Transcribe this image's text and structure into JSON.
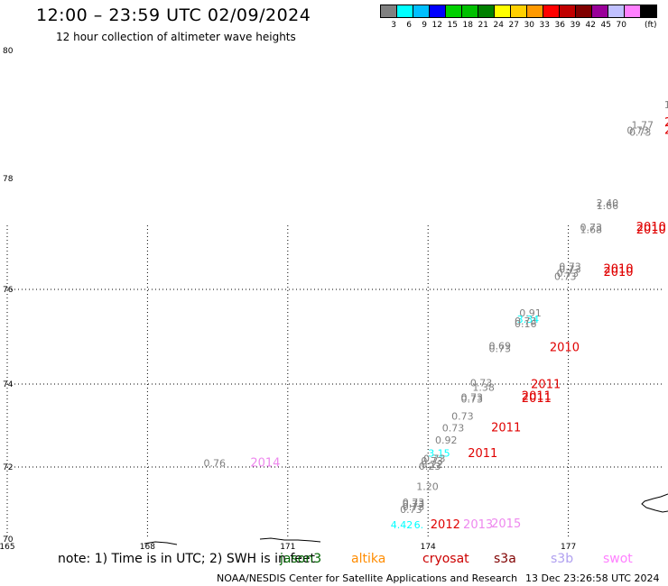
{
  "header": {
    "title": "12:00 – 23:59 UTC 02/09/2024",
    "subtitle": "12 hour collection of altimeter wave heights"
  },
  "legend": {
    "unit": "(ft)",
    "entries": [
      {
        "label": "3",
        "color": "#808080"
      },
      {
        "label": "6",
        "color": "#00ffff"
      },
      {
        "label": "9",
        "color": "#00bfff"
      },
      {
        "label": "12",
        "color": "#0000ff"
      },
      {
        "label": "15",
        "color": "#00d000"
      },
      {
        "label": "18",
        "color": "#00c000"
      },
      {
        "label": "21",
        "color": "#008000"
      },
      {
        "label": "24",
        "color": "#ffff00"
      },
      {
        "label": "27",
        "color": "#ffd000"
      },
      {
        "label": "30",
        "color": "#ff9900"
      },
      {
        "label": "33",
        "color": "#ff0000"
      },
      {
        "label": "36",
        "color": "#c00000"
      },
      {
        "label": "39",
        "color": "#800000"
      },
      {
        "label": "42",
        "color": "#990099"
      },
      {
        "label": "45",
        "color": "#c0c0ff"
      },
      {
        "label": "70",
        "color": "#ff80ff"
      },
      {
        "label": "",
        "color": "#000000"
      }
    ]
  },
  "map": {
    "lat_labels": [
      {
        "text": "80",
        "lat": 80
      },
      {
        "text": "78",
        "lat": 78
      },
      {
        "text": "76",
        "lat": 76
      },
      {
        "text": "74",
        "lat": 74
      },
      {
        "text": "72",
        "lat": 72
      },
      {
        "text": "70",
        "lat": 70
      }
    ],
    "lon_labels": [
      {
        "text": "165",
        "lon": 165
      },
      {
        "text": "168",
        "lon": 168
      },
      {
        "text": "171",
        "lon": 171
      },
      {
        "text": "174",
        "lon": 174
      },
      {
        "text": "177",
        "lon": 177
      }
    ],
    "swh_labels": [
      {
        "text": "1.",
        "lon": 179.05,
        "lat": 79.1,
        "color": "#808080"
      },
      {
        "text": "1.77",
        "lon": 178.35,
        "lat": 78.78,
        "color": "#808080"
      },
      {
        "text": "0.73",
        "lon": 178.25,
        "lat": 78.7,
        "color": "#808080"
      },
      {
        "text": "0.73",
        "lon": 178.3,
        "lat": 78.67,
        "color": "#808080"
      },
      {
        "text": "2.40",
        "lon": 177.6,
        "lat": 77.5,
        "color": "#808080"
      },
      {
        "text": "1.66",
        "lon": 177.6,
        "lat": 77.45,
        "color": "#808080"
      },
      {
        "text": "0.73",
        "lon": 177.25,
        "lat": 77.06,
        "color": "#808080"
      },
      {
        "text": "1.68",
        "lon": 177.25,
        "lat": 77.02,
        "color": "#808080"
      },
      {
        "text": "0.73",
        "lon": 176.8,
        "lat": 76.35,
        "color": "#808080"
      },
      {
        "text": "0.73",
        "lon": 176.8,
        "lat": 76.3,
        "color": "#808080"
      },
      {
        "text": "0.73",
        "lon": 176.75,
        "lat": 76.23,
        "color": "#808080"
      },
      {
        "text": "0.73",
        "lon": 176.7,
        "lat": 76.17,
        "color": "#808080"
      },
      {
        "text": "0.91",
        "lon": 175.95,
        "lat": 75.43,
        "color": "#808080"
      },
      {
        "text": "3.34",
        "lon": 175.9,
        "lat": 75.3,
        "color": "#00ffff"
      },
      {
        "text": "0.73",
        "lon": 175.85,
        "lat": 75.26,
        "color": "#808080"
      },
      {
        "text": "0.16",
        "lon": 175.85,
        "lat": 75.2,
        "color": "#808080"
      },
      {
        "text": "0.69",
        "lon": 175.3,
        "lat": 74.73,
        "color": "#808080"
      },
      {
        "text": "0.73",
        "lon": 175.3,
        "lat": 74.68,
        "color": "#808080"
      },
      {
        "text": "0.73",
        "lon": 174.9,
        "lat": 73.95,
        "color": "#808080"
      },
      {
        "text": "1.38",
        "lon": 174.95,
        "lat": 73.84,
        "color": "#808080"
      },
      {
        "text": "0.73",
        "lon": 174.7,
        "lat": 73.6,
        "color": "#808080"
      },
      {
        "text": "0.73",
        "lon": 174.7,
        "lat": 73.55,
        "color": "#808080"
      },
      {
        "text": "0.73",
        "lon": 174.5,
        "lat": 73.14,
        "color": "#808080"
      },
      {
        "text": "0.73",
        "lon": 174.3,
        "lat": 72.86,
        "color": "#808080"
      },
      {
        "text": "0.92",
        "lon": 174.15,
        "lat": 72.56,
        "color": "#808080"
      },
      {
        "text": "3.15",
        "lon": 174.0,
        "lat": 72.25,
        "color": "#00ffff"
      },
      {
        "text": "0.73",
        "lon": 173.9,
        "lat": 72.12,
        "color": "#808080"
      },
      {
        "text": "0.73",
        "lon": 173.85,
        "lat": 72.06,
        "color": "#808080"
      },
      {
        "text": "0.22",
        "lon": 173.85,
        "lat": 71.98,
        "color": "#808080"
      },
      {
        "text": "0.23",
        "lon": 173.8,
        "lat": 71.93,
        "color": "#808080"
      },
      {
        "text": "1.20",
        "lon": 173.75,
        "lat": 71.36,
        "color": "#808080"
      },
      {
        "text": "0.73",
        "lon": 173.45,
        "lat": 70.92,
        "color": "#808080"
      },
      {
        "text": "0.73",
        "lon": 173.45,
        "lat": 70.87,
        "color": "#808080"
      },
      {
        "text": "0.73",
        "lon": 173.45,
        "lat": 70.8,
        "color": "#808080"
      },
      {
        "text": "0.73",
        "lon": 173.4,
        "lat": 70.73,
        "color": "#808080"
      },
      {
        "text": "4.42",
        "lon": 173.2,
        "lat": 70.3,
        "color": "#00ffff"
      },
      {
        "text": "6.",
        "lon": 173.7,
        "lat": 70.3,
        "color": "#00ffff"
      },
      {
        "text": "0.76",
        "lon": 169.2,
        "lat": 72.01,
        "color": "#808080"
      }
    ],
    "year_labels": [
      {
        "text": "20",
        "lon": 179.3,
        "lat": 78.82,
        "color": "#e00000"
      },
      {
        "text": "20",
        "lon": 179.25,
        "lat": 78.7,
        "color": "#e00000"
      },
      {
        "text": "2010",
        "lon": 178.45,
        "lat": 77.06,
        "color": "#e00000"
      },
      {
        "text": "2010",
        "lon": 178.45,
        "lat": 77.01,
        "color": "#e00000"
      },
      {
        "text": "2010",
        "lon": 177.75,
        "lat": 76.3,
        "color": "#e00000"
      },
      {
        "text": "2010",
        "lon": 177.75,
        "lat": 76.24,
        "color": "#e00000"
      },
      {
        "text": "2010",
        "lon": 176.6,
        "lat": 74.7,
        "color": "#e00000"
      },
      {
        "text": "2011",
        "lon": 176.2,
        "lat": 73.9,
        "color": "#e00000"
      },
      {
        "text": "2011",
        "lon": 176.0,
        "lat": 73.62,
        "color": "#e00000"
      },
      {
        "text": "2011",
        "lon": 176.0,
        "lat": 73.56,
        "color": "#e00000"
      },
      {
        "text": "2011",
        "lon": 175.35,
        "lat": 72.86,
        "color": "#e00000"
      },
      {
        "text": "2011",
        "lon": 174.85,
        "lat": 72.24,
        "color": "#e00000"
      },
      {
        "text": "2012",
        "lon": 174.05,
        "lat": 70.3,
        "color": "#e00000"
      },
      {
        "text": "2013",
        "lon": 174.75,
        "lat": 70.3,
        "color": "#ee88ee"
      },
      {
        "text": "2015",
        "lon": 175.35,
        "lat": 70.33,
        "color": "#ee88ee"
      },
      {
        "text": "2014",
        "lon": 170.2,
        "lat": 72.01,
        "color": "#ee88ee"
      }
    ]
  },
  "notes": {
    "text": "note:  1) Time is in UTC; 2) SWH is in feet",
    "missions": [
      {
        "name": "jason3",
        "color": "#006400"
      },
      {
        "name": "altika",
        "color": "#ff8c00"
      },
      {
        "name": "cryosat",
        "color": "#cc0000"
      },
      {
        "name": "s3a",
        "color": "#800000"
      },
      {
        "name": "s3b",
        "color": "#b0a0f0"
      },
      {
        "name": "swot",
        "color": "#ff80ff"
      }
    ]
  },
  "footer": {
    "agency": "NOAA/NESDIS Center for Satellite Applications and Research",
    "timestamp": "13 Dec 23:26:58 UTC 2024"
  }
}
